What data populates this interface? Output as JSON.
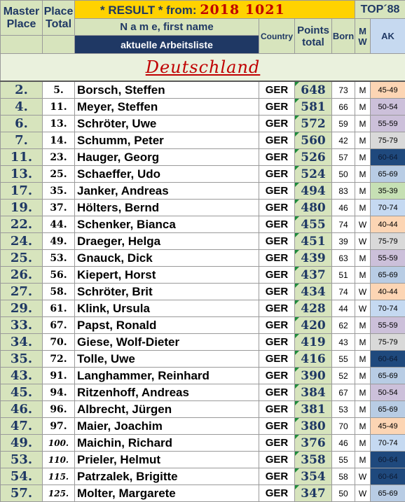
{
  "header": {
    "master_line1": "Master",
    "master_line2": "Place",
    "place_line1": "Place",
    "place_line2": "Total",
    "result_label": "* RESULT *  from:",
    "result_date": "2018  1021",
    "top_label": "TOP´88",
    "name_label": "N a m e, first name",
    "sublist_label": "aktuelle Arbeitsliste",
    "country_label": "Country",
    "points_line1": "Points",
    "points_line2": "total",
    "born_label": "Born",
    "mw_line1": "M",
    "mw_line2": "W",
    "ak_label": "AK"
  },
  "country_section": "Deutschland",
  "ak_colors": {
    "35-39": "#c6e0b4",
    "40-44": "#fcd5b4",
    "45-49": "#fcd5b4",
    "50-54": "#ccc0da",
    "55-59": "#ccc0da",
    "60-64": "#1f497d",
    "65-69": "#b8cce4",
    "70-74": "#c5d9f1",
    "75-79": "#d9d9d9"
  },
  "rows": [
    {
      "master": "2.",
      "place": "5.",
      "name": "Borsch, Steffen",
      "country": "GER",
      "points": "648",
      "born": "73",
      "mw": "M",
      "ak": "45-49"
    },
    {
      "master": "4.",
      "place": "11.",
      "name": "Meyer, Steffen",
      "country": "GER",
      "points": "581",
      "born": "66",
      "mw": "M",
      "ak": "50-54"
    },
    {
      "master": "6.",
      "place": "13.",
      "name": "Schröter, Uwe",
      "country": "GER",
      "points": "572",
      "born": "59",
      "mw": "M",
      "ak": "55-59"
    },
    {
      "master": "7.",
      "place": "14.",
      "name": "Schumm, Peter",
      "country": "GER",
      "points": "560",
      "born": "42",
      "mw": "M",
      "ak": "75-79"
    },
    {
      "master": "11.",
      "place": "23.",
      "name": "Hauger, Georg",
      "country": "GER",
      "points": "526",
      "born": "57",
      "mw": "M",
      "ak": "60-64"
    },
    {
      "master": "13.",
      "place": "25.",
      "name": "Schaeffer, Udo",
      "country": "GER",
      "points": "524",
      "born": "50",
      "mw": "M",
      "ak": "65-69"
    },
    {
      "master": "17.",
      "place": "35.",
      "name": "Janker, Andreas",
      "country": "GER",
      "points": "494",
      "born": "83",
      "mw": "M",
      "ak": "35-39"
    },
    {
      "master": "19.",
      "place": "37.",
      "name": "Hölters, Bernd",
      "country": "GER",
      "points": "480",
      "born": "46",
      "mw": "M",
      "ak": "70-74"
    },
    {
      "master": "22.",
      "place": "44.",
      "name": "Schenker, Bianca",
      "country": "GER",
      "points": "455",
      "born": "74",
      "mw": "W",
      "ak": "40-44"
    },
    {
      "master": "24.",
      "place": "49.",
      "name": "Draeger, Helga",
      "country": "GER",
      "points": "451",
      "born": "39",
      "mw": "W",
      "ak": "75-79"
    },
    {
      "master": "25.",
      "place": "53.",
      "name": "Gnauck, Dick",
      "country": "GER",
      "points": "439",
      "born": "63",
      "mw": "M",
      "ak": "55-59"
    },
    {
      "master": "26.",
      "place": "56.",
      "name": "Kiepert, Horst",
      "country": "GER",
      "points": "437",
      "born": "51",
      "mw": "M",
      "ak": "65-69"
    },
    {
      "master": "27.",
      "place": "58.",
      "name": "Schröter, Brit",
      "country": "GER",
      "points": "434",
      "born": "74",
      "mw": "W",
      "ak": "40-44"
    },
    {
      "master": "29.",
      "place": "61.",
      "name": "Klink, Ursula",
      "country": "GER",
      "points": "428",
      "born": "44",
      "mw": "W",
      "ak": "70-74"
    },
    {
      "master": "33.",
      "place": "67.",
      "name": "Papst, Ronald",
      "country": "GER",
      "points": "420",
      "born": "62",
      "mw": "M",
      "ak": "55-59"
    },
    {
      "master": "34.",
      "place": "70.",
      "name": "Giese, Wolf-Dieter",
      "country": "GER",
      "points": "419",
      "born": "43",
      "mw": "M",
      "ak": "75-79"
    },
    {
      "master": "35.",
      "place": "72.",
      "name": "Tolle, Uwe",
      "country": "GER",
      "points": "416",
      "born": "55",
      "mw": "M",
      "ak": "60-64"
    },
    {
      "master": "43.",
      "place": "91.",
      "name": "Langhammer, Reinhard",
      "country": "GER",
      "points": "390",
      "born": "52",
      "mw": "M",
      "ak": "65-69"
    },
    {
      "master": "45.",
      "place": "94.",
      "name": "Ritzenhoff, Andreas",
      "country": "GER",
      "points": "384",
      "born": "67",
      "mw": "M",
      "ak": "50-54"
    },
    {
      "master": "46.",
      "place": "96.",
      "name": "Albrecht, Jürgen",
      "country": "GER",
      "points": "381",
      "born": "53",
      "mw": "M",
      "ak": "65-69"
    },
    {
      "master": "47.",
      "place": "97.",
      "name": "Maier, Joachim",
      "country": "GER",
      "points": "380",
      "born": "70",
      "mw": "M",
      "ak": "45-49"
    },
    {
      "master": "49.",
      "place": "100.",
      "name": "Maichin, Richard",
      "country": "GER",
      "points": "376",
      "born": "46",
      "mw": "M",
      "ak": "70-74"
    },
    {
      "master": "53.",
      "place": "110.",
      "name": "Prieler, Helmut",
      "country": "GER",
      "points": "358",
      "born": "55",
      "mw": "M",
      "ak": "60-64"
    },
    {
      "master": "54.",
      "place": "115.",
      "name": "Patrzalek, Brigitte",
      "country": "GER",
      "points": "354",
      "born": "58",
      "mw": "W",
      "ak": "60-64"
    },
    {
      "master": "57.",
      "place": "125.",
      "name": "Molter, Margarete",
      "country": "GER",
      "points": "347",
      "born": "50",
      "mw": "W",
      "ak": "65-69"
    }
  ]
}
